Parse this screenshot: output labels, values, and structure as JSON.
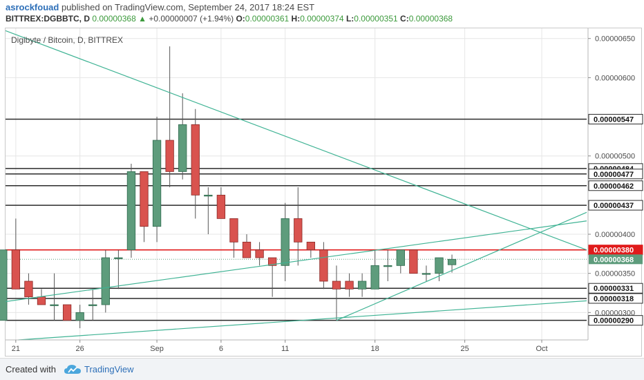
{
  "header": {
    "author": "asrockfouad",
    "published_text": "published on TradingView.com, September 24, 2017 18:24 EST",
    "symbol": "BITTREX:DGBBTC, D",
    "last": "0.00000368",
    "change_arrow": "▲",
    "change": "+0.00000007 (+1.94%)",
    "open_label": "O:",
    "open": "0.00000361",
    "high_label": "H:",
    "high": "0.00000374",
    "low_label": "L:",
    "low": "0.00000351",
    "close_label": "C:",
    "close": "0.00000368"
  },
  "colors": {
    "up": "#5e9c7c",
    "down": "#d9534f",
    "trend": "#3fb394",
    "red_line": "#e01b1b",
    "dark_line": "#2a2a2a"
  },
  "footer": {
    "created_with": "Created with",
    "brand": "TradingView",
    "logo_icon": "cloud-logo-icon"
  },
  "chart_data": {
    "type": "candlestick",
    "title": "Digibyte / Bitcoin, D, BITTREX",
    "y_unit": "BTC",
    "ylim": [
      2.65e-06,
      6.63e-06
    ],
    "x_ticks": [
      "21",
      "26",
      "Sep",
      "6",
      "11",
      "18",
      "25",
      "Oct"
    ],
    "x_tick_days": [
      21,
      26,
      32,
      37,
      42,
      49,
      56,
      62
    ],
    "y_ticks": [
      "0.00000650",
      "0.00000600",
      "0.00000500",
      "0.00000400",
      "0.00000350",
      "0.00000300"
    ],
    "y_tick_values": [
      6.5e-06,
      6e-06,
      5e-06,
      4e-06,
      3.5e-06,
      3e-06
    ],
    "last_price_label": "0.00000368",
    "horizontal_levels": [
      {
        "label": "0.00000547",
        "value": 5.47e-06,
        "style": "dark"
      },
      {
        "label": "0.00000484",
        "value": 4.84e-06,
        "style": "dark"
      },
      {
        "label": "0.00000477",
        "value": 4.77e-06,
        "style": "dark"
      },
      {
        "label": "0.00000462",
        "value": 4.62e-06,
        "style": "dark"
      },
      {
        "label": "0.00000437",
        "value": 4.37e-06,
        "style": "dark"
      },
      {
        "label": "0.00000380",
        "value": 3.8e-06,
        "style": "red"
      },
      {
        "label": "0.00000331",
        "value": 3.31e-06,
        "style": "dark"
      },
      {
        "label": "0.00000318",
        "value": 3.18e-06,
        "style": "dark"
      },
      {
        "label": "0.00000290",
        "value": 2.9e-06,
        "style": "dark"
      }
    ],
    "candles": [
      {
        "d": 20,
        "o": 2.9e-06,
        "h": 3.8e-06,
        "l": 2.9e-06,
        "c": 3.8e-06
      },
      {
        "d": 21,
        "o": 3.8e-06,
        "h": 4.2e-06,
        "l": 3.3e-06,
        "c": 3.3e-06
      },
      {
        "d": 22,
        "o": 3.4e-06,
        "h": 3.5e-06,
        "l": 3.1e-06,
        "c": 3.2e-06
      },
      {
        "d": 23,
        "o": 3.2e-06,
        "h": 3.3e-06,
        "l": 3.1e-06,
        "c": 3.1e-06
      },
      {
        "d": 24,
        "o": 3.1e-06,
        "h": 3.5e-06,
        "l": 2.9e-06,
        "c": 3.1e-06
      },
      {
        "d": 25,
        "o": 3.1e-06,
        "h": 3.1e-06,
        "l": 2.9e-06,
        "c": 2.9e-06
      },
      {
        "d": 26,
        "o": 2.9e-06,
        "h": 3.1e-06,
        "l": 2.8e-06,
        "c": 3e-06
      },
      {
        "d": 27,
        "o": 3.1e-06,
        "h": 3.3e-06,
        "l": 2.9e-06,
        "c": 3.1e-06
      },
      {
        "d": 28,
        "o": 3.1e-06,
        "h": 3.8e-06,
        "l": 3e-06,
        "c": 3.7e-06
      },
      {
        "d": 29,
        "o": 3.7e-06,
        "h": 3.8e-06,
        "l": 3.3e-06,
        "c": 3.7e-06
      },
      {
        "d": 30,
        "o": 3.8e-06,
        "h": 4.9e-06,
        "l": 3.7e-06,
        "c": 4.8e-06
      },
      {
        "d": 31,
        "o": 4.8e-06,
        "h": 4.8e-06,
        "l": 3.9e-06,
        "c": 4.1e-06
      },
      {
        "d": 32,
        "o": 4.1e-06,
        "h": 5.5e-06,
        "l": 3.9e-06,
        "c": 5.2e-06
      },
      {
        "d": 33,
        "o": 5.2e-06,
        "h": 6.4e-06,
        "l": 4.6e-06,
        "c": 4.8e-06
      },
      {
        "d": 34,
        "o": 4.8e-06,
        "h": 5.8e-06,
        "l": 4.7e-06,
        "c": 5.4e-06
      },
      {
        "d": 35,
        "o": 5.4e-06,
        "h": 5.6e-06,
        "l": 4.2e-06,
        "c": 4.5e-06
      },
      {
        "d": 36,
        "o": 4.5e-06,
        "h": 4.6e-06,
        "l": 4e-06,
        "c": 4.5e-06
      },
      {
        "d": 37,
        "o": 4.5e-06,
        "h": 4.6e-06,
        "l": 4.2e-06,
        "c": 4.2e-06
      },
      {
        "d": 38,
        "o": 4.2e-06,
        "h": 4.2e-06,
        "l": 3.7e-06,
        "c": 3.9e-06
      },
      {
        "d": 39,
        "o": 3.9e-06,
        "h": 4e-06,
        "l": 3.7e-06,
        "c": 3.7e-06
      },
      {
        "d": 40,
        "o": 3.8e-06,
        "h": 3.9e-06,
        "l": 3.6e-06,
        "c": 3.7e-06
      },
      {
        "d": 41,
        "o": 3.7e-06,
        "h": 3.7e-06,
        "l": 3.2e-06,
        "c": 3.6e-06
      },
      {
        "d": 42,
        "o": 3.6e-06,
        "h": 4.4e-06,
        "l": 3.4e-06,
        "c": 4.2e-06
      },
      {
        "d": 43,
        "o": 4.2e-06,
        "h": 4.6e-06,
        "l": 3.6e-06,
        "c": 3.9e-06
      },
      {
        "d": 44,
        "o": 3.9e-06,
        "h": 3.9e-06,
        "l": 3.7e-06,
        "c": 3.8e-06
      },
      {
        "d": 45,
        "o": 3.8e-06,
        "h": 3.9e-06,
        "l": 3.3e-06,
        "c": 3.4e-06
      },
      {
        "d": 46,
        "o": 3.4e-06,
        "h": 3.6e-06,
        "l": 2.9e-06,
        "c": 3.3e-06
      },
      {
        "d": 47,
        "o": 3.4e-06,
        "h": 3.5e-06,
        "l": 3.2e-06,
        "c": 3.3e-06
      },
      {
        "d": 48,
        "o": 3.3e-06,
        "h": 3.5e-06,
        "l": 3.2e-06,
        "c": 3.4e-06
      },
      {
        "d": 49,
        "o": 3.3e-06,
        "h": 3.8e-06,
        "l": 3.3e-06,
        "c": 3.6e-06
      },
      {
        "d": 50,
        "o": 3.6e-06,
        "h": 3.8e-06,
        "l": 3.4e-06,
        "c": 3.6e-06
      },
      {
        "d": 51,
        "o": 3.6e-06,
        "h": 3.8e-06,
        "l": 3.5e-06,
        "c": 3.8e-06
      },
      {
        "d": 52,
        "o": 3.8e-06,
        "h": 3.8e-06,
        "l": 3.5e-06,
        "c": 3.5e-06
      },
      {
        "d": 53,
        "o": 3.5e-06,
        "h": 3.6e-06,
        "l": 3.4e-06,
        "c": 3.5e-06
      },
      {
        "d": 54,
        "o": 3.5e-06,
        "h": 3.7e-06,
        "l": 3.4e-06,
        "c": 3.7e-06
      },
      {
        "d": 55,
        "o": 3.61e-06,
        "h": 3.74e-06,
        "l": 3.51e-06,
        "c": 3.68e-06
      }
    ],
    "trend_lines": [
      {
        "name": "descending",
        "from": [
          20.2,
          6.6e-06
        ],
        "to": [
          65.5,
          3.8e-06
        ]
      },
      {
        "name": "rising-1",
        "from": [
          20.2,
          3.14e-06
        ],
        "to": [
          65.5,
          4.17e-06
        ]
      },
      {
        "name": "rising-2",
        "from": [
          46,
          2.9e-06
        ],
        "to": [
          65.5,
          4.28e-06
        ]
      },
      {
        "name": "rising-3",
        "from": [
          21.2,
          2.65e-06
        ],
        "to": [
          65.5,
          3.15e-06
        ]
      }
    ]
  }
}
